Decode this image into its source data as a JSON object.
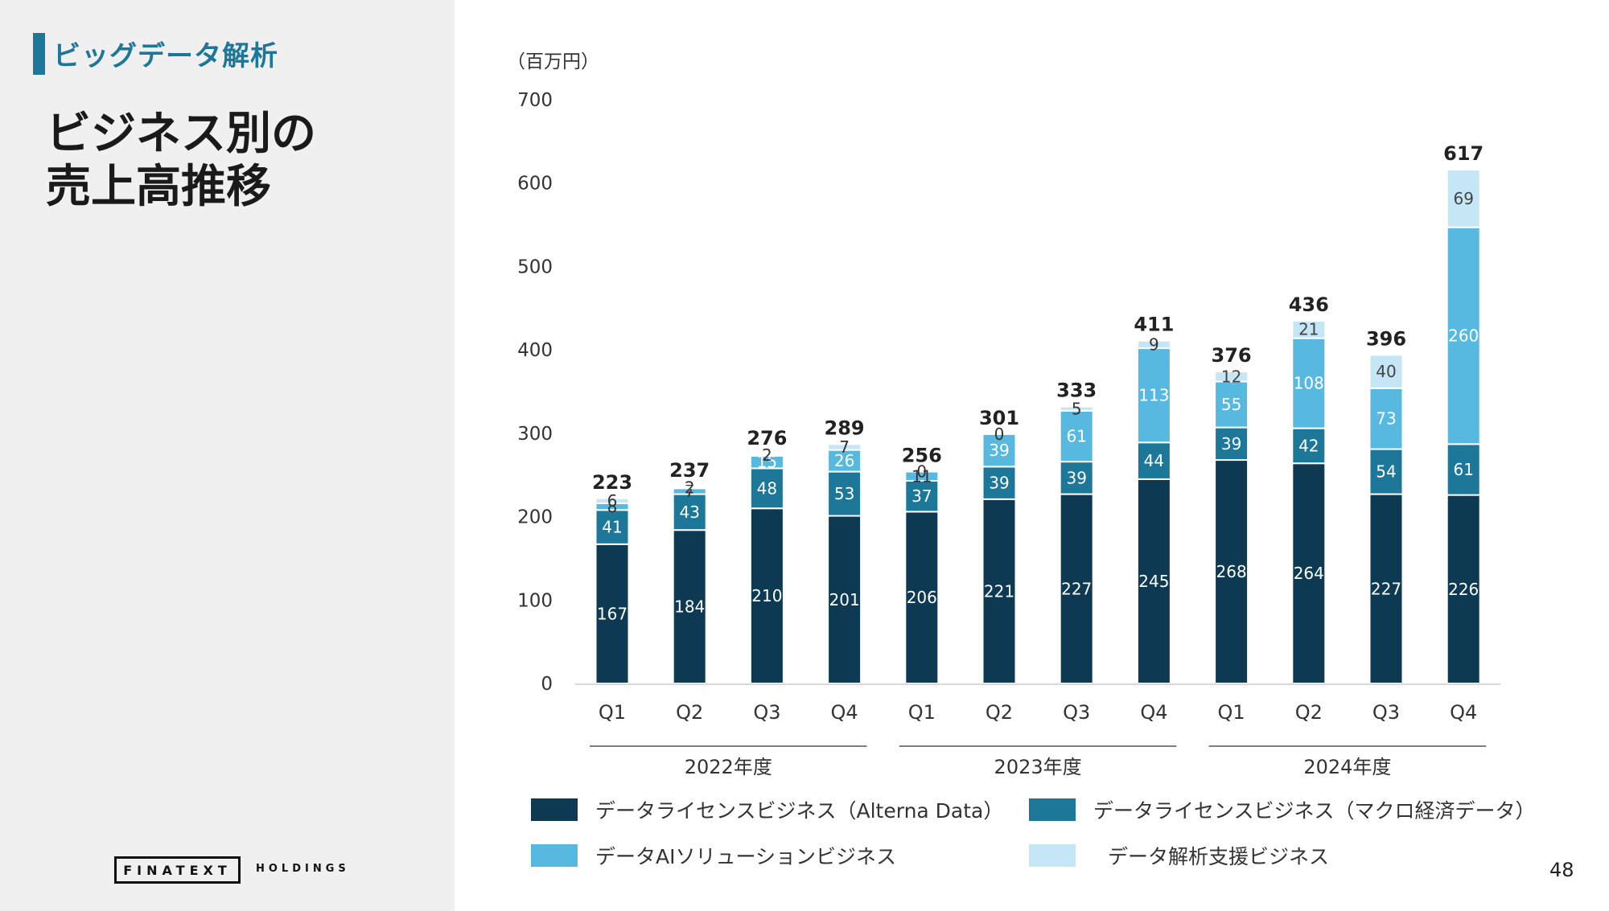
{
  "section": {
    "title": "ビッグデータ解析"
  },
  "heading": {
    "text": "ビジネス別の\n売上高推移"
  },
  "logo": {
    "main": "FINATEXT",
    "sub": "HOLDINGS"
  },
  "page_number": "48",
  "chart_data": {
    "type": "bar",
    "stacked": true,
    "unit_label": "（百万円）",
    "ylim": [
      0,
      700
    ],
    "yticks": [
      0,
      100,
      200,
      300,
      400,
      500,
      600,
      700
    ],
    "categories": [
      "Q1",
      "Q2",
      "Q3",
      "Q4",
      "Q1",
      "Q2",
      "Q3",
      "Q4",
      "Q1",
      "Q2",
      "Q3",
      "Q4"
    ],
    "groups": [
      {
        "label": "2022年度",
        "count": 4
      },
      {
        "label": "2023年度",
        "count": 4
      },
      {
        "label": "2024年度",
        "count": 4
      }
    ],
    "series": [
      {
        "name": "データライセンスビジネス（Alterna Data）",
        "color": "#0d3a52",
        "label_color": "#ffffff",
        "values": [
          167,
          184,
          210,
          201,
          206,
          221,
          227,
          245,
          268,
          264,
          227,
          226
        ]
      },
      {
        "name": "データライセンスビジネス（マクロ経済データ）",
        "color": "#1d7799",
        "label_color": "#ffffff",
        "values": [
          41,
          43,
          48,
          53,
          37,
          39,
          39,
          44,
          39,
          42,
          54,
          61
        ]
      },
      {
        "name": "データAIソリューションビジネス",
        "color": "#58b9e0",
        "label_color": "#ffffff",
        "values": [
          8,
          7,
          15,
          26,
          11,
          39,
          61,
          113,
          55,
          108,
          73,
          260
        ]
      },
      {
        "name": "データ解析支援ビジネス",
        "color": "#c5e6f4",
        "label_color": "#444444",
        "values": [
          6,
          2,
          2,
          7,
          0,
          0,
          5,
          9,
          12,
          21,
          40,
          69
        ]
      }
    ],
    "totals": [
      223,
      237,
      276,
      289,
      256,
      301,
      333,
      411,
      376,
      436,
      396,
      617
    ]
  }
}
